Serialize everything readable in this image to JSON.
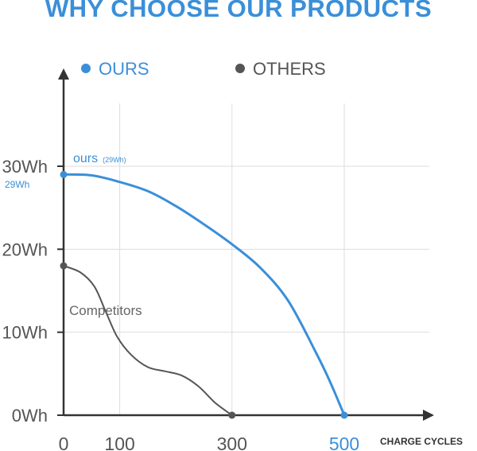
{
  "header": {
    "title": "WHY CHOOSE OUR PRODUCTS"
  },
  "colors": {
    "ours": "#3a8fd9",
    "others": "#555555",
    "axis": "#333333",
    "grid": "#dddddd"
  },
  "chart_data": {
    "type": "line",
    "title": "WHY CHOOSE OUR PRODUCTS",
    "xlabel": "CHARGE CYCLES",
    "ylabel": "",
    "xlim": [
      0,
      600
    ],
    "ylim": [
      0,
      35
    ],
    "x_ticks": [
      {
        "value": 0,
        "label": "0"
      },
      {
        "value": 100,
        "label": "100"
      },
      {
        "value": 300,
        "label": "300"
      },
      {
        "value": 500,
        "label": "500",
        "highlight": true
      }
    ],
    "y_ticks": [
      {
        "value": 0,
        "label": "0Wh"
      },
      {
        "value": 10,
        "label": "10Wh"
      },
      {
        "value": 20,
        "label": "20Wh"
      },
      {
        "value": 30,
        "label": "30Wh"
      }
    ],
    "legend": [
      {
        "name": "OURS",
        "color": "#3a8fd9"
      },
      {
        "name": "OTHERS",
        "color": "#555555"
      }
    ],
    "series": [
      {
        "name": "OURS",
        "color": "#3a8fd9",
        "x": [
          0,
          50,
          100,
          150,
          200,
          250,
          300,
          350,
          400,
          450,
          475,
          500
        ],
        "y": [
          29,
          28.9,
          28.1,
          27,
          25.2,
          23,
          20.6,
          17.8,
          13.8,
          7.5,
          4,
          0
        ],
        "markers": [
          {
            "x": 0,
            "y": 29
          },
          {
            "x": 500,
            "y": 0
          }
        ],
        "annotation": {
          "text": "ours",
          "small": "(29Wh)"
        },
        "start_label": "29Wh"
      },
      {
        "name": "OTHERS",
        "color": "#555555",
        "x": [
          0,
          30,
          55,
          75,
          95,
          120,
          150,
          180,
          210,
          240,
          270,
          300
        ],
        "y": [
          18,
          17.2,
          15.5,
          12.5,
          9.5,
          7.3,
          5.8,
          5.3,
          4.8,
          3.5,
          1.5,
          0
        ],
        "markers": [
          {
            "x": 0,
            "y": 18
          },
          {
            "x": 300,
            "y": 0
          }
        ],
        "annotation": {
          "text": "Competitors"
        }
      }
    ]
  }
}
